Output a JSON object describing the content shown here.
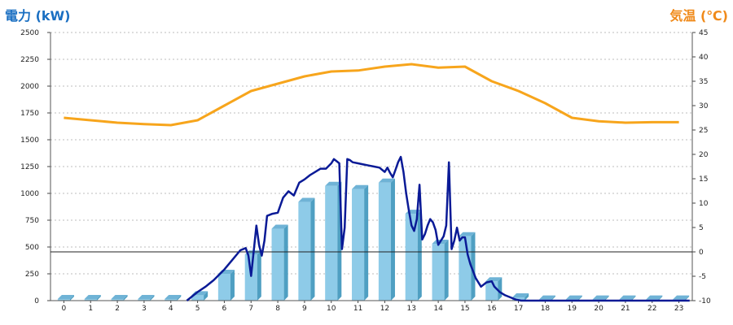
{
  "chart_data": {
    "type": "bar",
    "left_axis_title": "電力 (kW)",
    "right_axis_title": "気温 (℃)",
    "colors": {
      "bars": "#8ecbe8",
      "bar_side": "#4f9fc2",
      "power_line": "#0a1a96",
      "temp_line": "#f7a51c",
      "left_title": "#1a6fc2",
      "right_title": "#f08a1a"
    },
    "x_ticks": [
      "0",
      "1",
      "2",
      "3",
      "4",
      "5",
      "6",
      "7",
      "8",
      "9",
      "10",
      "11",
      "12",
      "13",
      "14",
      "15",
      "16",
      "17",
      "18",
      "19",
      "20",
      "21",
      "22",
      "23"
    ],
    "y_left_ticks": [
      "2500",
      "2250",
      "2000",
      "1750",
      "1500",
      "1250",
      "1000",
      "750",
      "500",
      "250",
      "0"
    ],
    "y_right_ticks": [
      "45",
      "40",
      "35",
      "30",
      "25",
      "20",
      "15",
      "10",
      "5",
      "0",
      "-5",
      "-10"
    ],
    "ylim_left": [
      0,
      2500
    ],
    "ylim_right": [
      -10,
      45
    ],
    "grid": true,
    "series": [
      {
        "kind": "bar",
        "axis": "left",
        "x": [
          0,
          1,
          2,
          3,
          4,
          5,
          6,
          7,
          8,
          9,
          10,
          11,
          12,
          13,
          14,
          15,
          16,
          17,
          18,
          19,
          20,
          21,
          22,
          23
        ],
        "values": [
          15,
          15,
          15,
          15,
          15,
          50,
          250,
          430,
          670,
          920,
          1070,
          1040,
          1100,
          810,
          530,
          600,
          180,
          30,
          10,
          10,
          10,
          10,
          10,
          10
        ]
      },
      {
        "kind": "line",
        "axis": "left",
        "x": [
          4.6,
          5.0,
          5.3,
          5.6,
          6.0,
          6.3,
          6.6,
          6.8,
          6.9,
          7.0,
          7.1,
          7.2,
          7.3,
          7.4,
          7.5,
          7.6,
          7.8,
          8.0,
          8.2,
          8.4,
          8.6,
          8.8,
          9.0,
          9.2,
          9.4,
          9.6,
          9.8,
          10.0,
          10.1,
          10.2,
          10.3,
          10.4,
          10.5,
          10.6,
          10.7,
          10.8,
          11.0,
          11.2,
          11.4,
          11.6,
          11.8,
          12.0,
          12.1,
          12.2,
          12.3,
          12.4,
          12.5,
          12.6,
          12.7,
          12.8,
          12.9,
          13.0,
          13.1,
          13.2,
          13.3,
          13.4,
          13.5,
          13.6,
          13.7,
          13.8,
          13.9,
          14.0,
          14.1,
          14.2,
          14.3,
          14.4,
          14.5,
          14.6,
          14.7,
          14.8,
          14.9,
          15.0,
          15.1,
          15.2,
          15.4,
          15.6,
          15.8,
          16.0,
          16.1,
          16.3,
          16.5,
          16.7,
          16.9,
          17.1,
          17.3,
          17.6,
          18.0,
          18.5,
          19.0,
          20.0,
          21.0,
          22.0,
          23.0,
          23.4
        ],
        "values": [
          0,
          80,
          130,
          190,
          290,
          380,
          470,
          490,
          420,
          230,
          460,
          700,
          520,
          420,
          560,
          790,
          810,
          820,
          960,
          1020,
          980,
          1100,
          1130,
          1170,
          1200,
          1230,
          1230,
          1280,
          1320,
          1300,
          1280,
          480,
          680,
          1320,
          1310,
          1290,
          1280,
          1270,
          1260,
          1250,
          1240,
          1200,
          1240,
          1190,
          1150,
          1220,
          1290,
          1340,
          1200,
          1000,
          840,
          700,
          650,
          760,
          1080,
          570,
          620,
          700,
          760,
          730,
          660,
          520,
          560,
          600,
          700,
          1290,
          480,
          560,
          680,
          560,
          590,
          590,
          430,
          340,
          210,
          130,
          170,
          180,
          130,
          80,
          50,
          30,
          10,
          0,
          0,
          0,
          0,
          0,
          0,
          0,
          0,
          0,
          0,
          0
        ]
      },
      {
        "kind": "line",
        "axis": "right",
        "x": [
          0,
          1,
          2,
          3,
          4,
          5,
          6,
          7,
          8,
          9,
          10,
          11,
          12,
          13,
          14,
          15,
          16,
          17,
          18,
          19,
          20,
          21,
          22,
          23
        ],
        "values": [
          27.5,
          27.0,
          26.5,
          26.2,
          26.0,
          27.0,
          30.0,
          33.0,
          34.5,
          36.0,
          37.0,
          37.2,
          38.0,
          38.5,
          37.8,
          38.0,
          35.0,
          33.0,
          30.5,
          27.5,
          26.8,
          26.5,
          26.6,
          26.6
        ]
      }
    ],
    "reference_line": {
      "axis": "right",
      "value": 0
    }
  }
}
